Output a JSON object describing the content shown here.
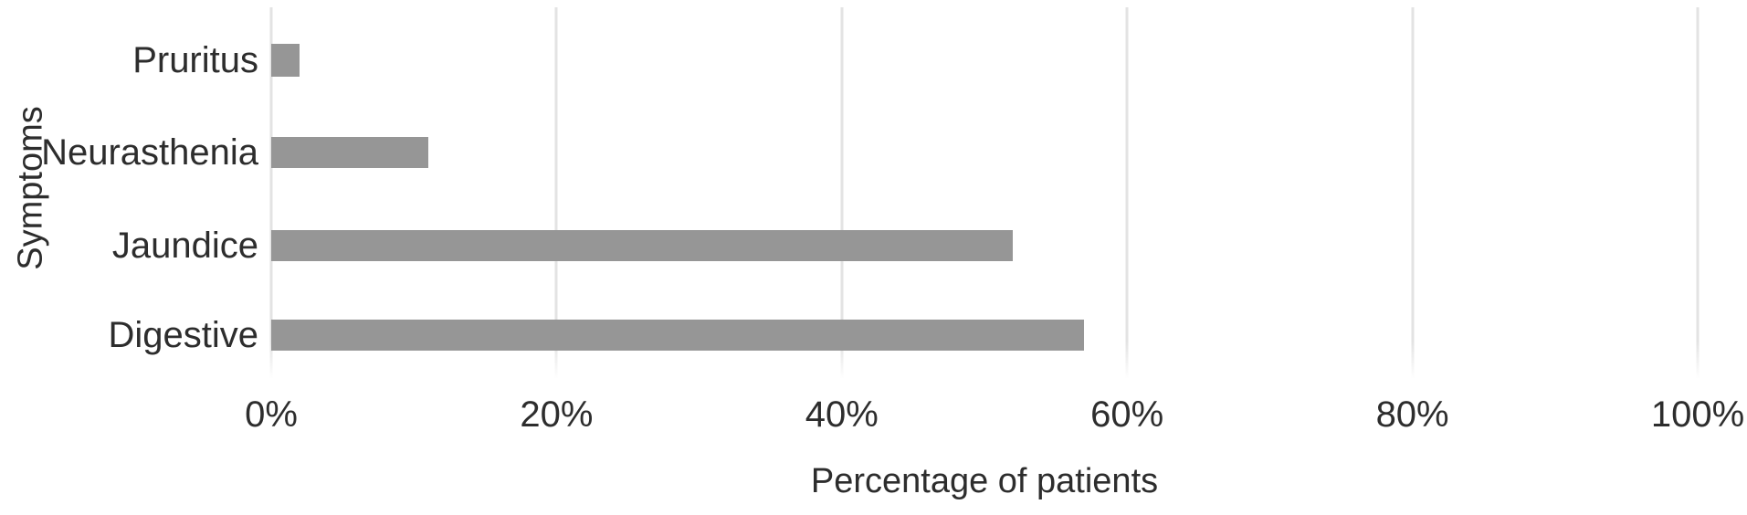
{
  "chart_data": {
    "type": "bar",
    "orientation": "horizontal",
    "title": "",
    "categories": [
      "Pruritus",
      "Neurasthenia",
      "Jaundice",
      "Digestive"
    ],
    "values": [
      2,
      11,
      52,
      57
    ],
    "xlabel": "Percentage of patients",
    "ylabel": "Symptoms",
    "x_ticks": [
      "0%",
      "20%",
      "40%",
      "60%",
      "80%",
      "100%"
    ],
    "xlim": [
      0,
      100
    ],
    "grid": "vertical-gridlines-only",
    "legend": "none",
    "bar_color": "#969696",
    "gridline_color": "#e3e3e3",
    "text_color": "#2d2d2d",
    "background_color": "#ffffff"
  }
}
